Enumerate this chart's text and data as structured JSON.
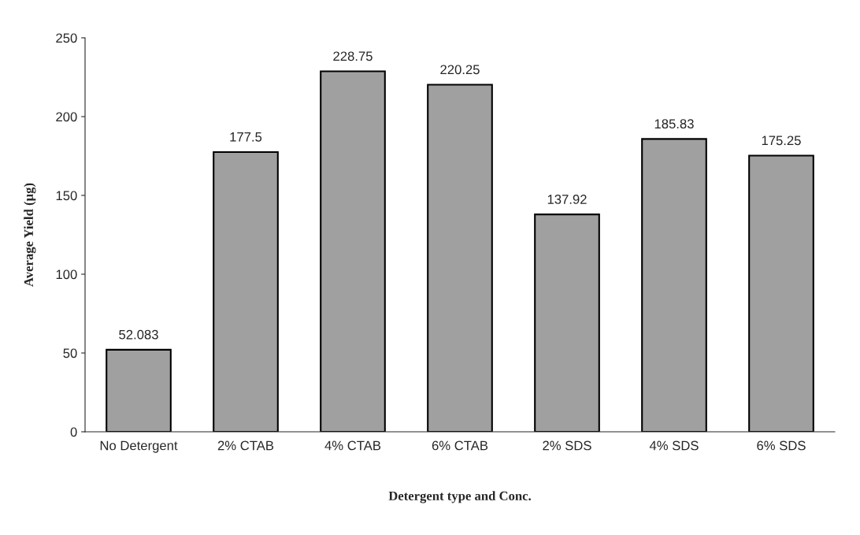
{
  "chart_data": {
    "type": "bar",
    "categories": [
      "No Detergent",
      "2% CTAB",
      "4% CTAB",
      "6% CTAB",
      "2% SDS",
      "4% SDS",
      "6% SDS"
    ],
    "values": [
      52.083,
      177.5,
      228.75,
      220.25,
      137.92,
      185.83,
      175.25
    ],
    "color": "#a0a0a0",
    "xlabel": "Detergent type and Conc.",
    "ylabel": "Average Yield (µg)",
    "ylim": [
      0,
      250
    ],
    "yticks": [
      0,
      50,
      100,
      150,
      200,
      250
    ],
    "data_labels": true,
    "grid": false
  }
}
